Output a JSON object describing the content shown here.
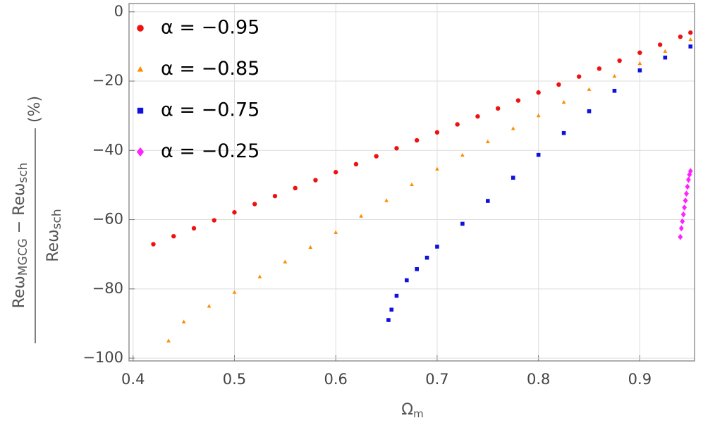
{
  "chart_data": {
    "type": "scatter",
    "xlabel": [
      "Ω",
      "m"
    ],
    "ylabel": {
      "numerator": [
        "Reω",
        "MGCG",
        " − Reω",
        "sch"
      ],
      "denominator": [
        "Reω",
        "sch"
      ],
      "unit": "(%)"
    },
    "xlim": [
      0.396,
      0.954
    ],
    "ylim": [
      -100.8,
      2.4
    ],
    "xticks": [
      0.4,
      0.5,
      0.6,
      0.7,
      0.8,
      0.9
    ],
    "yticks": [
      0,
      {
        "value": -20,
        "label": "−20"
      },
      {
        "value": -40,
        "label": "−40"
      },
      {
        "value": -60,
        "label": "−60"
      },
      {
        "value": -80,
        "label": "−80"
      },
      {
        "value": -100,
        "label": "−100"
      }
    ],
    "grid": true,
    "legend": "top-left",
    "series": [
      {
        "name": "α = −0.95",
        "color": "#ee1111",
        "marker": "circle",
        "x": [
          0.42,
          0.44,
          0.46,
          0.48,
          0.5,
          0.52,
          0.54,
          0.56,
          0.58,
          0.6,
          0.62,
          0.64,
          0.66,
          0.68,
          0.7,
          0.72,
          0.74,
          0.76,
          0.78,
          0.8,
          0.82,
          0.84,
          0.86,
          0.88,
          0.9,
          0.92,
          0.94,
          0.95
        ],
        "values": [
          -67.1,
          -64.8,
          -62.5,
          -60.2,
          -57.9,
          -55.5,
          -53.2,
          -50.9,
          -48.6,
          -46.3,
          -44.0,
          -41.7,
          -39.4,
          -37.1,
          -34.8,
          -32.5,
          -30.2,
          -27.9,
          -25.6,
          -23.3,
          -21.0,
          -18.7,
          -16.4,
          -14.1,
          -11.8,
          -9.5,
          -7.2,
          -6.0
        ]
      },
      {
        "name": "α = −0.85",
        "color": "#ff8c00",
        "marker": "triangle",
        "x": [
          0.435,
          0.45,
          0.475,
          0.5,
          0.525,
          0.55,
          0.575,
          0.6,
          0.625,
          0.65,
          0.675,
          0.7,
          0.725,
          0.75,
          0.775,
          0.8,
          0.825,
          0.85,
          0.875,
          0.9,
          0.925,
          0.95
        ],
        "values": [
          -95.0,
          -89.5,
          -85.0,
          -81.0,
          -76.5,
          -72.2,
          -68.0,
          -63.7,
          -59.0,
          -54.5,
          -49.9,
          -45.4,
          -41.4,
          -37.5,
          -33.7,
          -30.0,
          -26.1,
          -22.4,
          -18.6,
          -14.9,
          -11.4,
          -8.0
        ]
      },
      {
        "name": "α = −0.75",
        "color": "#1111dd",
        "marker": "square",
        "x": [
          0.652,
          0.655,
          0.66,
          0.67,
          0.68,
          0.69,
          0.7,
          0.725,
          0.75,
          0.775,
          0.8,
          0.825,
          0.85,
          0.875,
          0.9,
          0.925,
          0.95
        ],
        "values": [
          -89.0,
          -86.0,
          -82.0,
          -77.5,
          -74.3,
          -71.0,
          -67.8,
          -61.2,
          -54.6,
          -47.9,
          -41.3,
          -35.0,
          -28.7,
          -22.8,
          -16.9,
          -13.2,
          -10.0
        ]
      },
      {
        "name": "α = −0.25",
        "color": "#ff22ff",
        "marker": "diamond",
        "x": [
          0.94,
          0.941,
          0.942,
          0.943,
          0.944,
          0.945,
          0.946,
          0.947,
          0.948,
          0.949,
          0.95
        ],
        "values": [
          -65.0,
          -62.5,
          -60.5,
          -58.5,
          -56.5,
          -54.5,
          -52.5,
          -50.5,
          -48.5,
          -47.0,
          -46.0
        ]
      }
    ]
  }
}
